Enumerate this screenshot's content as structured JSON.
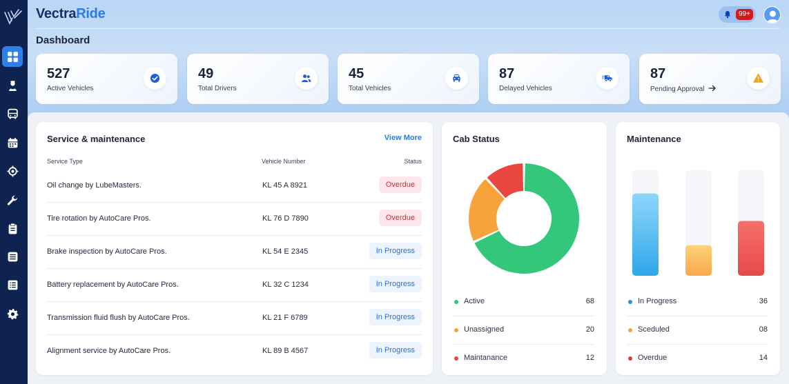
{
  "brand": {
    "part1": "Vectra",
    "part2": "Ride"
  },
  "header": {
    "page_title": "Dashboard",
    "notification_count": "99+"
  },
  "sidebar": {
    "items": [
      {
        "icon": "dashboard-grid-icon",
        "active": true
      },
      {
        "icon": "driver-icon"
      },
      {
        "icon": "bus-icon"
      },
      {
        "icon": "calendar-icon"
      },
      {
        "icon": "location-target-icon"
      },
      {
        "icon": "wrench-icon"
      },
      {
        "icon": "clipboard-icon"
      },
      {
        "icon": "list-icon"
      },
      {
        "icon": "report-icon"
      },
      {
        "icon": "settings-gear-icon"
      }
    ]
  },
  "stats": [
    {
      "value": "527",
      "label": "Active Vehicles",
      "icon": "check-circle-icon"
    },
    {
      "value": "49",
      "label": "Total Drivers",
      "icon": "users-icon"
    },
    {
      "value": "45",
      "label": "Total Vehicles",
      "icon": "car-icon"
    },
    {
      "value": "87",
      "label": "Delayed Vehicles",
      "icon": "delayed-truck-icon"
    },
    {
      "value": "87",
      "label": "Pending Approval",
      "icon": "warning-icon"
    }
  ],
  "service": {
    "title": "Service & maintenance",
    "view_more": "View More",
    "columns": [
      "Service Type",
      "Vehicle Number",
      "Status"
    ],
    "rows": [
      {
        "type": "Oil change by LubeMasters.",
        "vehicle": "KL 45 A 8921",
        "status": "Overdue"
      },
      {
        "type": "Tire rotation by AutoCare Pros.",
        "vehicle": "KL 76 D 7890",
        "status": "Overdue"
      },
      {
        "type": "Brake inspection by AutoCare Pros.",
        "vehicle": "KL 54 E 2345",
        "status": "In Progress"
      },
      {
        "type": "Battery replacement by AutoCare Pros.",
        "vehicle": "KL 32 C 1234",
        "status": "In Progress"
      },
      {
        "type": "Transmission fluid flush by AutoCare Pros.",
        "vehicle": "KL 21 F 6789",
        "status": "In Progress"
      },
      {
        "type": "Alignment service by AutoCare Pros.",
        "vehicle": "KL 89 B 4567",
        "status": "In Progress"
      }
    ]
  },
  "cab_status": {
    "title": "Cab Status",
    "legend": [
      {
        "name": "Active",
        "value": "68",
        "color": "#34c77b"
      },
      {
        "name": "Unassigned",
        "value": "20",
        "color": "#f7a23a"
      },
      {
        "name": "Maintanance",
        "value": "12",
        "color": "#e8463f"
      }
    ]
  },
  "maintenance": {
    "title": "Maintenance",
    "legend": [
      {
        "name": "In Progress",
        "value": "36",
        "color": "#2c8fd9"
      },
      {
        "name": "Sceduled",
        "value": "08",
        "color": "#f7a23a"
      },
      {
        "name": "Overdue",
        "value": "14",
        "color": "#e0403a"
      }
    ]
  },
  "chart_data": [
    {
      "type": "pie",
      "title": "Cab Status",
      "categories": [
        "Active",
        "Unassigned",
        "Maintanance"
      ],
      "values": [
        68,
        20,
        12
      ],
      "colors": [
        "#34c77b",
        "#f7a23a",
        "#e8463f"
      ]
    },
    {
      "type": "bar",
      "title": "Maintenance",
      "categories": [
        "In Progress",
        "Sceduled",
        "Overdue"
      ],
      "values": [
        36,
        8,
        14
      ],
      "bar_fill_fraction": [
        0.78,
        0.29,
        0.52
      ],
      "colors": [
        "#2ea7ea",
        "#f9a94a",
        "#e6494a"
      ],
      "grid": false
    }
  ]
}
